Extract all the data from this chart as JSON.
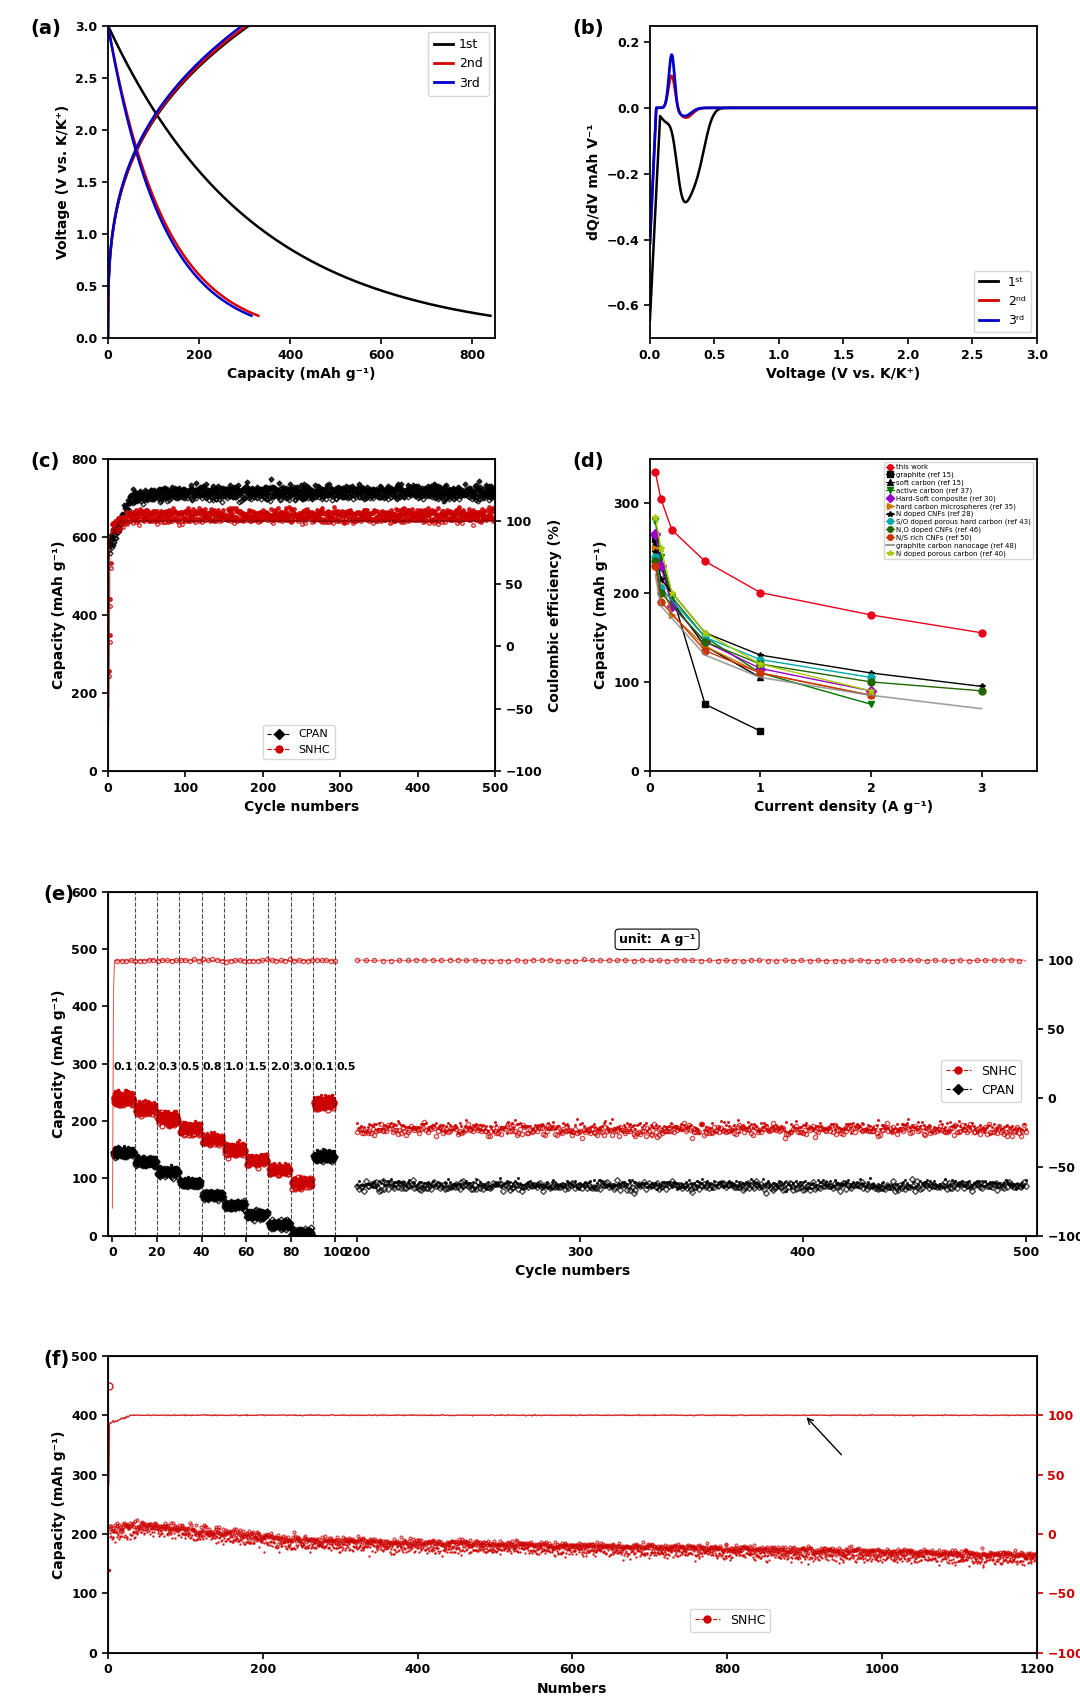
{
  "fig_width": 10.8,
  "fig_height": 17.04,
  "background": "#ffffff",
  "panel_a": {
    "label": "(a)",
    "xlabel": "Capacity (mAh g⁻¹)",
    "ylabel": "Voltage (V vs. K/K⁺)",
    "xlim": [
      0,
      850
    ],
    "ylim": [
      0.0,
      3.0
    ],
    "xticks": [
      0,
      200,
      400,
      600,
      800
    ],
    "yticks": [
      0.0,
      0.5,
      1.0,
      1.5,
      2.0,
      2.5,
      3.0
    ],
    "legend_labels": [
      "1st",
      "2nd",
      "3rd"
    ],
    "legend_colors": [
      "#000000",
      "#d40000",
      "#0000cc"
    ]
  },
  "panel_b": {
    "label": "(b)",
    "xlabel": "Voltage (V vs. K/K⁺)",
    "ylabel": "dQ/dV mAh V⁻¹",
    "xlim": [
      0,
      3.0
    ],
    "ylim": [
      -0.7,
      0.25
    ],
    "xticks": [
      0.0,
      0.5,
      1.0,
      1.5,
      2.0,
      2.5,
      3.0
    ],
    "yticks": [
      -0.6,
      -0.4,
      -0.2,
      0.0,
      0.2
    ],
    "legend_labels": [
      "1ˢᵗ",
      "2ⁿᵈ",
      "3ʳᵈ"
    ],
    "legend_colors": [
      "#000000",
      "#d40000",
      "#0000cc"
    ]
  },
  "panel_c": {
    "label": "(c)",
    "xlabel": "Cycle numbers",
    "ylabel_left": "Capacity (mAh g⁻¹)",
    "ylabel_right": "Coulombic efficiency (%)",
    "xlim": [
      0,
      500
    ],
    "ylim_left": [
      0,
      800
    ],
    "ylim_right": [
      -100,
      150
    ],
    "xticks": [
      0,
      100,
      200,
      300,
      400,
      500
    ],
    "yticks_left": [
      0,
      200,
      400,
      600,
      800
    ],
    "yticks_right": [
      -100,
      -50,
      0,
      50,
      100
    ]
  },
  "panel_d": {
    "label": "(d)",
    "xlabel": "Current density (A g⁻¹)",
    "ylabel": "Capacity (mAh g⁻¹)",
    "xlim": [
      0,
      3.5
    ],
    "ylim": [
      0,
      350
    ],
    "xticks": [
      0,
      1,
      2,
      3
    ],
    "yticks": [
      0,
      100,
      200,
      300
    ]
  },
  "panel_e": {
    "label": "(e)",
    "xlabel": "Cycle numbers",
    "ylabel_left": "Capacity (mAh g⁻¹)",
    "ylabel_right": "Coulombic efficiency (%)",
    "xlim": [
      0,
      500
    ],
    "ylim_left": [
      0,
      600
    ],
    "ylim_right": [
      -100,
      150
    ],
    "yticks_left": [
      0,
      100,
      200,
      300,
      400,
      500,
      600
    ],
    "yticks_right": [
      -100,
      -50,
      0,
      50,
      100
    ],
    "rate_labels": [
      "0.1",
      "0.2",
      "0.3",
      "0.5",
      "0.8",
      "1.0",
      "1.5",
      "2.0",
      "3.0",
      "0.1",
      "0.5"
    ],
    "unit_label": "unit:  A g⁻¹"
  },
  "panel_f": {
    "label": "(f)",
    "xlabel": "Numbers",
    "ylabel_left": "Capacity (mAh g⁻¹)",
    "ylabel_right": "Coulombic efficiency (%)",
    "xlim": [
      0,
      1200
    ],
    "ylim_left": [
      0,
      500
    ],
    "ylim_right": [
      -100,
      150
    ],
    "xticks": [
      0,
      200,
      400,
      600,
      800,
      1000,
      1200
    ],
    "yticks_left": [
      0,
      100,
      200,
      300,
      400,
      500
    ],
    "yticks_right": [
      -100,
      -50,
      0,
      50,
      100
    ],
    "legend_label": "SNHC"
  }
}
